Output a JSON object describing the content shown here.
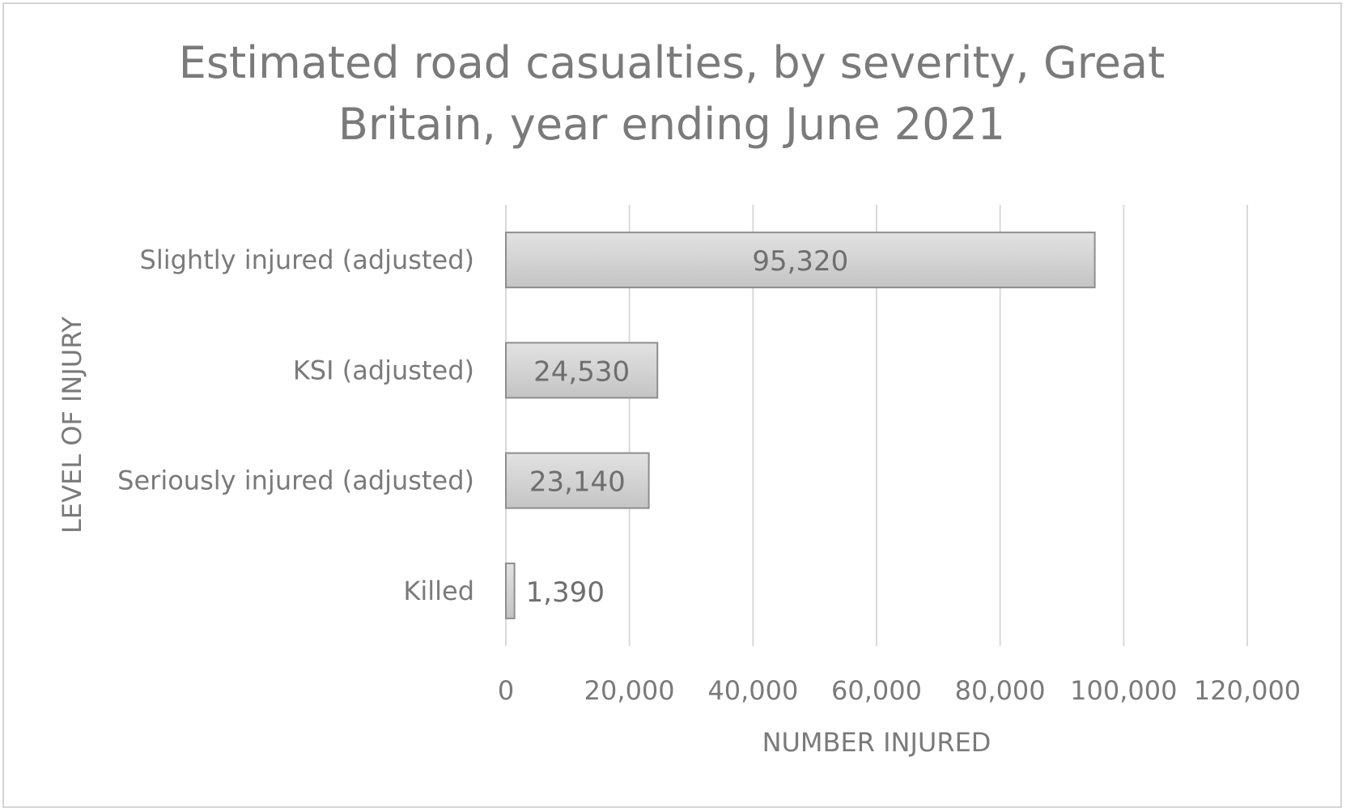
{
  "chart_data": {
    "type": "bar",
    "orientation": "horizontal",
    "title": "Estimated road casualties, by severity, Great Britain, year ending June 2021",
    "title_lines": [
      "Estimated road casualties, by severity, Great",
      "Britain, year ending June 2021"
    ],
    "xlabel": "NUMBER INJURED",
    "ylabel": "LEVEL OF INJURY",
    "categories": [
      "Slightly injured (adjusted)",
      "KSI (adjusted)",
      "Seriously injured (adjusted)",
      "Killed"
    ],
    "values": [
      95320,
      24530,
      23140,
      1390
    ],
    "data_labels": [
      "95,320",
      "24,530",
      "23,140",
      "1,390"
    ],
    "xlim": [
      0,
      120000
    ],
    "xticks": [
      0,
      20000,
      40000,
      60000,
      80000,
      100000,
      120000
    ],
    "xtick_labels": [
      "0",
      "20,000",
      "40,000",
      "60,000",
      "80,000",
      "100,000",
      "120,000"
    ],
    "grid": "vertical",
    "legend": "none",
    "colors": {
      "bar_fill_light": "#dcdcdc",
      "bar_fill_dark": "#c6c6c6",
      "bar_stroke": "#8e8e8e",
      "gridline": "#d9d9d9",
      "text": "#7a7a7a"
    }
  }
}
